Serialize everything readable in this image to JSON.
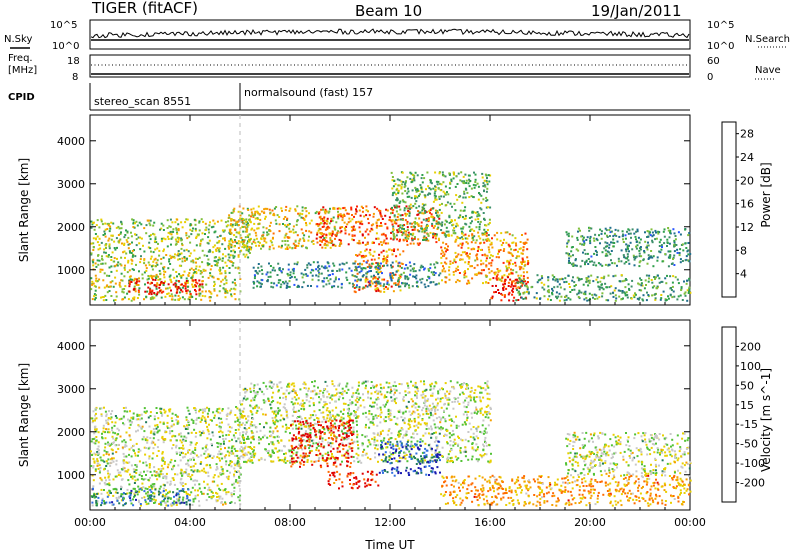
{
  "header": {
    "station": "TIGER (fitACF)",
    "beam": "Beam 10",
    "date": "19/Jan/2011"
  },
  "panels": {
    "nsky_label": "N.Sky",
    "nsearch_label": "N.Search",
    "nsky_ticks": [
      "10^5",
      "10^0"
    ],
    "nsearch_ticks": [
      "10^5",
      "10^0"
    ],
    "freq_label_1": "Freq.",
    "freq_label_2": "[MHz]",
    "freq_ticks": [
      "18",
      "8"
    ],
    "nave_label": "Nave",
    "nave_ticks": [
      "60",
      "0"
    ],
    "cpid_label": "CPID",
    "cpid_segments": [
      {
        "label": "stereo_scan 8551",
        "start_hour": 0.0
      },
      {
        "label": "normalsound (fast) 157",
        "start_hour": 6.0
      }
    ]
  },
  "chart_data": [
    {
      "type": "heatmap",
      "name": "power",
      "x_ticks": [
        "00:00",
        "04:00",
        "08:00",
        "12:00",
        "16:00",
        "20:00",
        "00:00"
      ],
      "xlim_hours": [
        0,
        24
      ],
      "ylabel": "Slant Range [km]",
      "y_ticks": [
        "1000",
        "2000",
        "3000",
        "4000"
      ],
      "ylim": [
        180,
        4600
      ],
      "colorbar": {
        "label": "Power [dB]",
        "ticks": [
          "4",
          "8",
          "12",
          "16",
          "20",
          "24",
          "28"
        ],
        "range": [
          0,
          30
        ],
        "colors": [
          "#0000ff",
          "#2a55ff",
          "#1f6e8c",
          "#3c8f6a",
          "#2ea04a",
          "#7fbf3a",
          "#e8d000",
          "#f5a000",
          "#ff6a00",
          "#ff2600",
          "#e00000"
        ]
      },
      "regions": [
        {
          "x0": 0.0,
          "x1": 6.0,
          "y0": 300,
          "y1": 1300,
          "level": 0.55
        },
        {
          "x0": 1.5,
          "x1": 4.5,
          "y0": 450,
          "y1": 800,
          "level": 0.95
        },
        {
          "x0": 0.0,
          "x1": 6.5,
          "y0": 1300,
          "y1": 2200,
          "level": 0.5
        },
        {
          "x0": 5.5,
          "x1": 10.0,
          "y0": 1500,
          "y1": 2500,
          "level": 0.6
        },
        {
          "x0": 9.0,
          "x1": 14.0,
          "y0": 1600,
          "y1": 2500,
          "level": 0.8
        },
        {
          "x0": 10.5,
          "x1": 12.5,
          "y0": 500,
          "y1": 1500,
          "level": 0.75
        },
        {
          "x0": 12.0,
          "x1": 16.0,
          "y0": 1700,
          "y1": 3300,
          "level": 0.45
        },
        {
          "x0": 14.0,
          "x1": 17.5,
          "y0": 700,
          "y1": 1900,
          "level": 0.7
        },
        {
          "x0": 16.0,
          "x1": 17.5,
          "y0": 300,
          "y1": 900,
          "level": 0.9
        },
        {
          "x0": 17.0,
          "x1": 24.0,
          "y0": 300,
          "y1": 900,
          "level": 0.4
        },
        {
          "x0": 19.0,
          "x1": 24.0,
          "y0": 1100,
          "y1": 2000,
          "level": 0.35
        },
        {
          "x0": 6.5,
          "x1": 14.0,
          "y0": 600,
          "y1": 1200,
          "level": 0.3
        }
      ]
    },
    {
      "type": "heatmap",
      "name": "velocity",
      "x_ticks": [
        "00:00",
        "04:00",
        "08:00",
        "12:00",
        "16:00",
        "20:00",
        "00:00"
      ],
      "xlim_hours": [
        0,
        24
      ],
      "xlabel": "Time UT",
      "ylabel": "Slant Range [km]",
      "y_ticks": [
        "1000",
        "2000",
        "3000",
        "4000"
      ],
      "ylim": [
        180,
        4600
      ],
      "colorbar": {
        "label": "Velocity [m s^-1]",
        "ticks": [
          "200",
          "100",
          "50",
          "15",
          "-15",
          "-50",
          "-100",
          "-200"
        ],
        "range": [
          -250,
          250
        ],
        "colors": [
          "#1a1ab0",
          "#2f6fe0",
          "#1f7a5a",
          "#52c235",
          "#c8c8c8",
          "#e8d000",
          "#f5a000",
          "#ff6a00",
          "#e00000"
        ]
      },
      "regions": [
        {
          "x0": 0.0,
          "x1": 6.0,
          "y0": 300,
          "y1": 1300,
          "level": 0.5
        },
        {
          "x0": 0.0,
          "x1": 6.5,
          "y0": 1300,
          "y1": 2600,
          "level": 0.5
        },
        {
          "x0": 6.0,
          "x1": 16.0,
          "y0": 1300,
          "y1": 3200,
          "level": 0.5
        },
        {
          "x0": 8.0,
          "x1": 10.5,
          "y0": 1200,
          "y1": 2300,
          "level": 0.95
        },
        {
          "x0": 9.5,
          "x1": 11.5,
          "y0": 700,
          "y1": 1100,
          "level": 0.95
        },
        {
          "x0": 11.5,
          "x1": 14.0,
          "y0": 1000,
          "y1": 1800,
          "level": 0.15
        },
        {
          "x0": 14.0,
          "x1": 24.0,
          "y0": 300,
          "y1": 1000,
          "level": 0.72
        },
        {
          "x0": 19.0,
          "x1": 24.0,
          "y0": 1000,
          "y1": 2000,
          "level": 0.5
        },
        {
          "x0": 0.0,
          "x1": 4.0,
          "y0": 300,
          "y1": 700,
          "level": 0.25
        }
      ]
    }
  ]
}
